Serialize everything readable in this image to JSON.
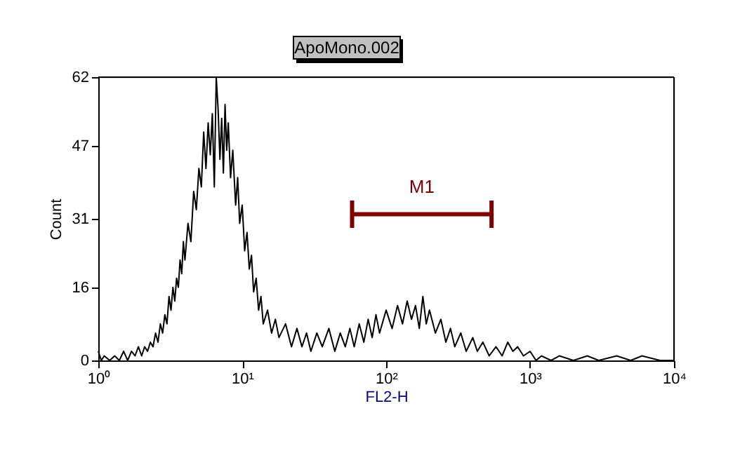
{
  "chart_data": {
    "type": "line",
    "title": "ApoMono.002",
    "xlabel": "FL2-H",
    "ylabel": "Count",
    "log": "x",
    "grid": false,
    "xlim": [
      1,
      10000
    ],
    "ylim": [
      0,
      62
    ],
    "xticks": [
      {
        "value": 1,
        "label": "10⁰"
      },
      {
        "value": 10,
        "label": "10¹"
      },
      {
        "value": 100,
        "label": "10²"
      },
      {
        "value": 1000,
        "label": "10³"
      },
      {
        "value": 10000,
        "label": "10⁴"
      }
    ],
    "yticks": [
      0,
      16,
      31,
      47,
      62
    ],
    "series": [
      {
        "color": "#000000",
        "x": [
          1.0,
          1.05,
          1.1,
          1.2,
          1.3,
          1.4,
          1.5,
          1.6,
          1.7,
          1.8,
          1.9,
          2.0,
          2.1,
          2.2,
          2.3,
          2.4,
          2.5,
          2.6,
          2.7,
          2.8,
          2.9,
          3.0,
          3.1,
          3.2,
          3.3,
          3.4,
          3.5,
          3.6,
          3.7,
          3.8,
          3.9,
          4.0,
          4.2,
          4.4,
          4.6,
          4.8,
          5.0,
          5.2,
          5.4,
          5.6,
          5.8,
          6.0,
          6.2,
          6.4,
          6.6,
          6.8,
          7.0,
          7.2,
          7.4,
          7.6,
          7.8,
          8.0,
          8.3,
          8.6,
          9.0,
          9.3,
          9.6,
          10,
          10.4,
          10.8,
          11.2,
          11.6,
          12,
          12.5,
          13,
          13.5,
          14,
          15,
          16,
          17,
          18,
          20,
          22,
          24,
          26,
          28,
          30,
          33,
          36,
          40,
          44,
          48,
          52,
          56,
          60,
          65,
          70,
          75,
          80,
          85,
          90,
          100,
          110,
          120,
          130,
          140,
          150,
          160,
          170,
          180,
          190,
          200,
          220,
          240,
          260,
          280,
          300,
          330,
          360,
          400,
          430,
          470,
          520,
          580,
          640,
          700,
          760,
          820,
          900,
          1000,
          1100,
          1200,
          1400,
          1600,
          2000,
          2500,
          3000,
          4000,
          5000,
          6000,
          8000,
          10000
        ],
        "values": [
          2,
          0,
          1,
          0,
          1,
          0,
          2,
          0,
          2,
          1,
          3,
          1,
          3,
          2,
          4,
          3,
          6,
          4,
          8,
          6,
          10,
          8,
          14,
          11,
          16,
          13,
          18,
          16,
          22,
          19,
          26,
          22,
          30,
          26,
          37,
          33,
          42,
          38,
          50,
          42,
          52,
          45,
          54,
          38,
          62,
          55,
          44,
          53,
          41,
          56,
          46,
          52,
          40,
          46,
          34,
          40,
          30,
          34,
          24,
          28,
          20,
          23,
          15,
          18,
          11,
          14,
          8,
          11,
          6,
          9,
          5,
          8,
          3,
          7,
          3,
          6,
          2,
          6,
          3,
          7,
          2,
          6,
          3,
          7,
          3,
          8,
          4,
          9,
          5,
          10,
          6,
          11,
          7,
          12,
          8,
          13,
          9,
          12,
          7,
          14,
          8,
          11,
          6,
          9,
          4,
          7,
          3,
          6,
          2,
          5,
          2,
          4,
          1,
          3,
          1,
          4,
          2,
          3,
          1,
          2,
          0,
          1,
          0,
          1,
          0,
          1,
          0,
          1,
          0,
          1,
          0,
          0
        ],
        "line_style": "solid"
      },
      {
        "type": "line",
        "name": "M1",
        "color": "#800000",
        "x": [
          58,
          540
        ],
        "values": [
          32,
          32
        ],
        "errors": [
          3,
          3
        ]
      }
    ]
  }
}
